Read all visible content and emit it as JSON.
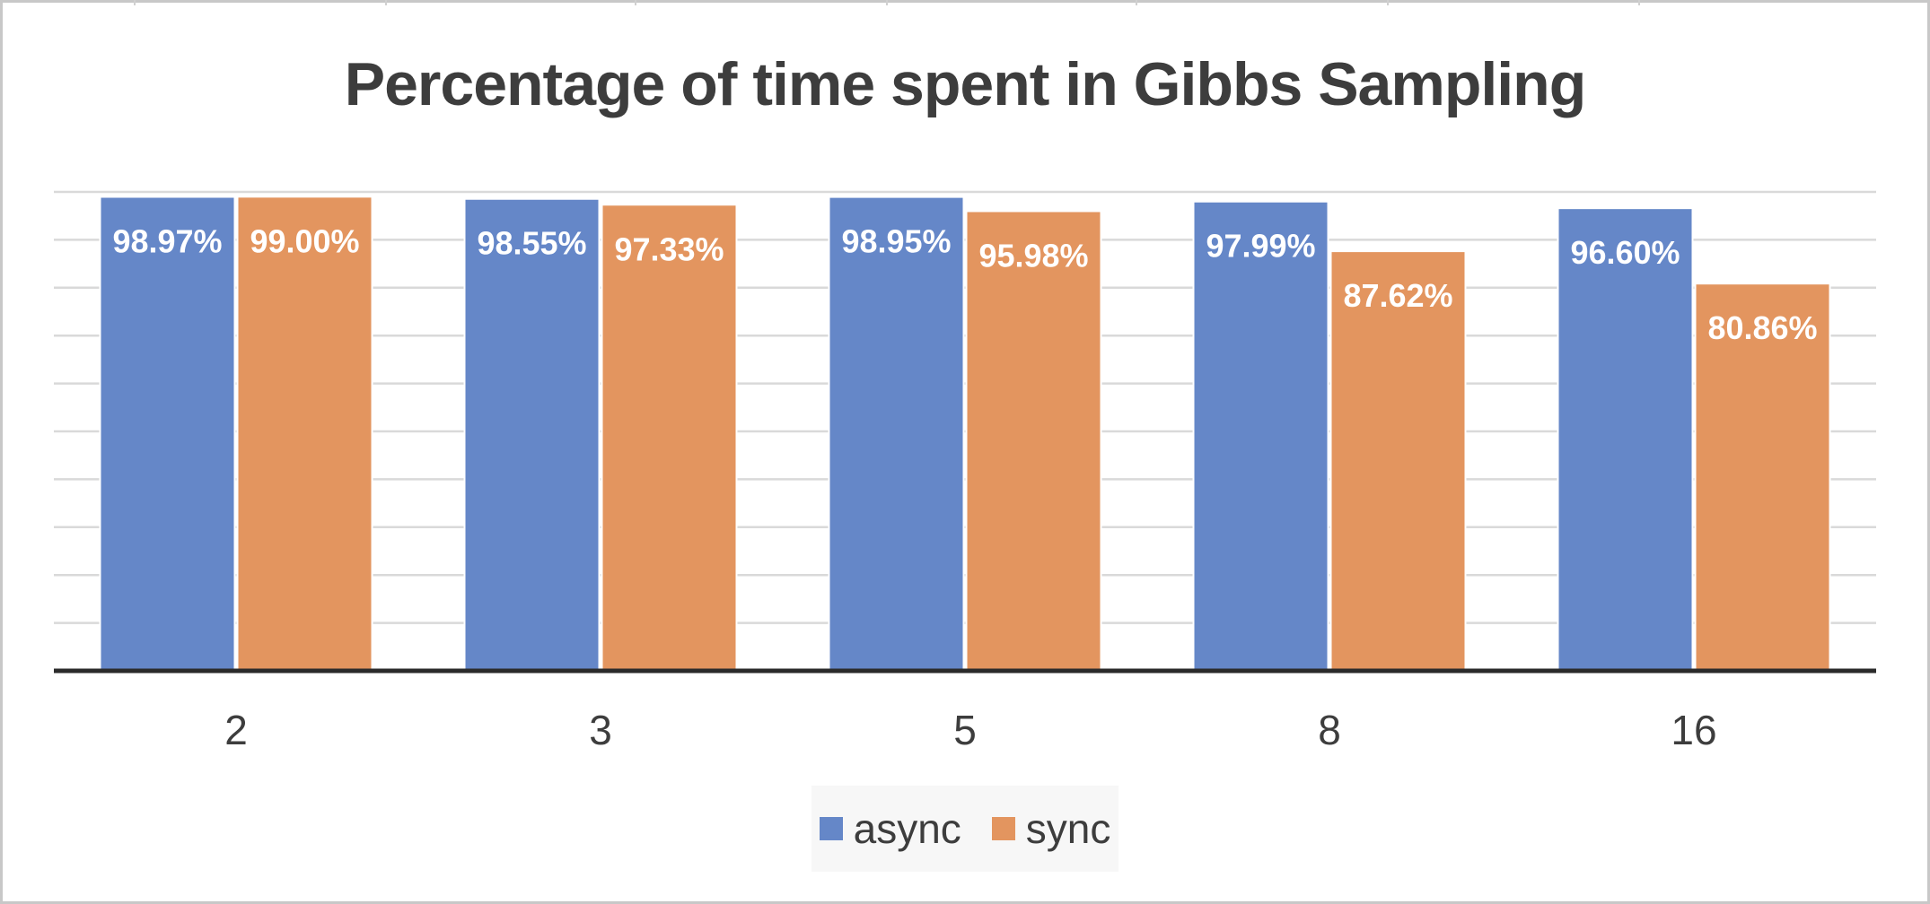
{
  "chart_data": {
    "type": "bar",
    "title": "Percentage of time spent in Gibbs Sampling",
    "categories": [
      "2",
      "3",
      "5",
      "8",
      "16"
    ],
    "series": [
      {
        "name": "async",
        "color": "#6587c8",
        "values": [
          98.97,
          98.55,
          98.95,
          97.99,
          96.6
        ],
        "labels": [
          "98.97%",
          "98.55%",
          "98.95%",
          "97.99%",
          "96.60%"
        ]
      },
      {
        "name": "sync",
        "color": "#e3955f",
        "values": [
          99.0,
          97.33,
          95.98,
          87.62,
          80.86
        ],
        "labels": [
          "99.00%",
          "97.33%",
          "95.98%",
          "87.62%",
          "80.86%"
        ]
      }
    ],
    "ylim": [
      0,
      100
    ],
    "grid": true,
    "legend_position": "bottom"
  }
}
